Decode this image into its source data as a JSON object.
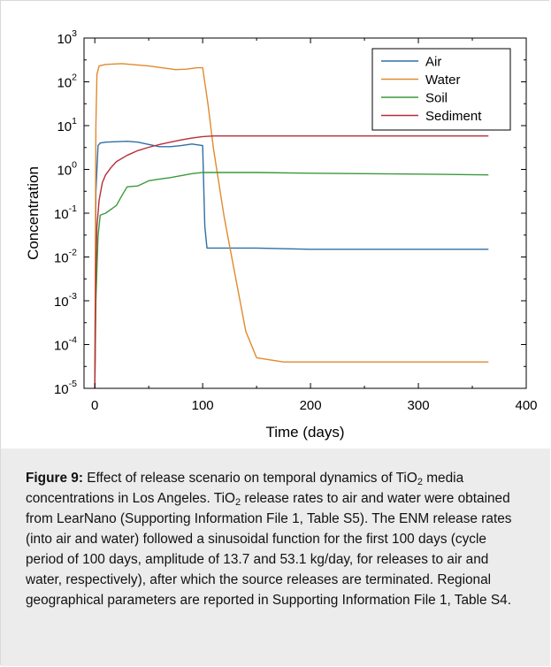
{
  "chart_data": {
    "type": "line",
    "xlabel": "Time (days)",
    "ylabel": "Concentration",
    "xlim": [
      -10,
      400
    ],
    "ylim_log10": [
      -5,
      3
    ],
    "y_scale": "log",
    "x_ticks": [
      "0",
      "100",
      "200",
      "300",
      "400"
    ],
    "y_ticks": [
      {
        "base": "10",
        "exp": "-5"
      },
      {
        "base": "10",
        "exp": "-4"
      },
      {
        "base": "10",
        "exp": "-3"
      },
      {
        "base": "10",
        "exp": "-2"
      },
      {
        "base": "10",
        "exp": "-1"
      },
      {
        "base": "10",
        "exp": "0"
      },
      {
        "base": "10",
        "exp": "1"
      },
      {
        "base": "10",
        "exp": "2"
      },
      {
        "base": "10",
        "exp": "3"
      }
    ],
    "legend_position": "top-right",
    "series": [
      {
        "name": "Air",
        "color": "#2f6fa8",
        "x": [
          0,
          1,
          3,
          5,
          10,
          20,
          30,
          40,
          50,
          60,
          70,
          80,
          90,
          100,
          101,
          102,
          104,
          120,
          150,
          200,
          250,
          300,
          350,
          365
        ],
        "y": [
          1e-05,
          0.3,
          3.5,
          4.0,
          4.2,
          4.3,
          4.4,
          4.2,
          3.7,
          3.3,
          3.3,
          3.5,
          3.8,
          3.5,
          0.4,
          0.05,
          0.016,
          0.016,
          0.016,
          0.015,
          0.015,
          0.015,
          0.015,
          0.015
        ]
      },
      {
        "name": "Water",
        "color": "#e08a2e",
        "x": [
          0,
          1,
          2,
          4,
          10,
          25,
          50,
          75,
          85,
          95,
          100,
          105,
          110,
          120,
          130,
          140,
          150,
          175,
          200,
          225,
          250,
          275,
          300,
          325,
          350,
          365
        ],
        "y": [
          1e-05,
          10,
          150,
          230,
          250,
          260,
          230,
          190,
          195,
          210,
          210,
          30,
          3,
          0.08,
          0.004,
          0.0002,
          5e-05,
          4e-05,
          4e-05,
          4e-05,
          4e-05,
          4e-05,
          4e-05,
          4e-05,
          4e-05,
          4e-05
        ]
      },
      {
        "name": "Soil",
        "color": "#3b9a3b",
        "x": [
          0,
          1,
          3,
          5,
          10,
          20,
          25,
          30,
          40,
          50,
          60,
          70,
          80,
          90,
          100,
          150,
          200,
          250,
          300,
          365
        ],
        "y": [
          1e-05,
          0.001,
          0.03,
          0.09,
          0.1,
          0.15,
          0.25,
          0.4,
          0.42,
          0.55,
          0.6,
          0.65,
          0.72,
          0.8,
          0.85,
          0.85,
          0.82,
          0.8,
          0.78,
          0.75
        ]
      },
      {
        "name": "Sediment",
        "color": "#b82e38",
        "x": [
          0,
          1,
          2,
          4,
          7,
          10,
          15,
          20,
          30,
          40,
          50,
          60,
          70,
          80,
          90,
          100,
          110,
          200,
          300,
          365
        ],
        "y": [
          1e-05,
          0.005,
          0.05,
          0.2,
          0.5,
          0.75,
          1.1,
          1.5,
          2.1,
          2.7,
          3.2,
          3.7,
          4.2,
          4.7,
          5.2,
          5.6,
          5.8,
          5.8,
          5.8,
          5.8
        ]
      }
    ]
  },
  "caption": {
    "label": "Figure 9:",
    "t1": " Effect of release scenario on temporal dynamics of TiO",
    "sub1": "2",
    "t2": " media concentrations in Los Angeles. TiO",
    "sub2": "2",
    "t3": " release rates to air and water were obtained from LearNano (Supporting Information File 1, Table S5). The ENM release rates (into air and water) followed a sinusoidal function for the first 100 days (cycle period of 100 days, amplitude of 13.7 and 53.1 kg/day, for releases to air and water, respectively), after which the source releases are terminated. Regional geographical parameters are reported in Supporting Information File 1, Table S4."
  }
}
